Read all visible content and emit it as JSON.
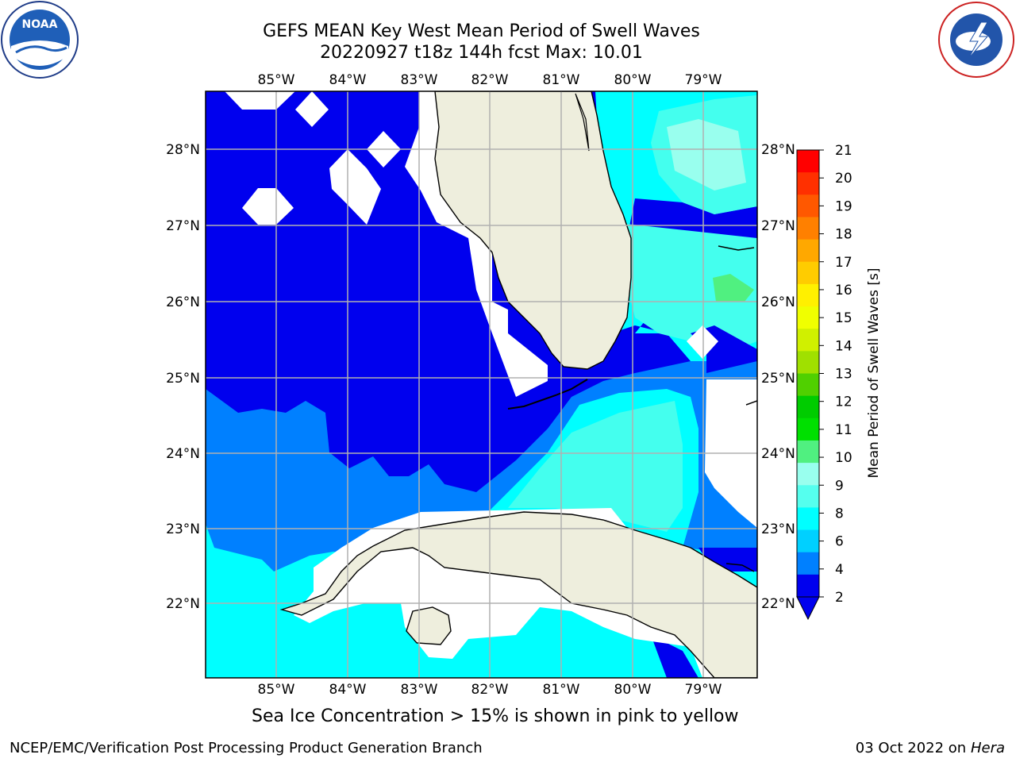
{
  "header": {
    "title_line1": "GEFS MEAN Key West Mean Period of Swell Waves",
    "title_line2": "20220927 t18z 144h fcst   Max: 10.01"
  },
  "map": {
    "lon_labels": [
      "85°W",
      "84°W",
      "83°W",
      "82°W",
      "81°W",
      "80°W",
      "79°W"
    ],
    "lat_labels": [
      "28°N",
      "27°N",
      "26°N",
      "25°N",
      "24°N",
      "23°N",
      "22°N"
    ],
    "land_color": "#eeeedd",
    "no_data_color": "#ffffff"
  },
  "colorbar": {
    "label": "Mean Period of Swell Waves [s]",
    "ticks": [
      "21",
      "20",
      "19",
      "18",
      "17",
      "16",
      "15",
      "14",
      "13",
      "12",
      "11",
      "10",
      "9",
      "8",
      "6",
      "4",
      "2"
    ],
    "colors": [
      "#ff0000",
      "#ff3000",
      "#ff5800",
      "#ff8000",
      "#ffa800",
      "#ffcc00",
      "#fff000",
      "#f0ff00",
      "#d0f000",
      "#a0e000",
      "#50d000",
      "#00cc00",
      "#00e000",
      "#50f080",
      "#99ffee",
      "#55ffee",
      "#00ffff",
      "#00d0ff",
      "#0080ff",
      "#0000ee"
    ]
  },
  "logos": {
    "left": "NOAA",
    "right": "NATIONAL WEATHER SERVICE"
  },
  "note": "Sea Ice Concentration > 15% is shown in pink to yellow",
  "footer": {
    "left": "NCEP/EMC/Verification Post Processing Product Generation Branch",
    "right_date": "03 Oct 2022 on ",
    "right_host": "Hera"
  }
}
